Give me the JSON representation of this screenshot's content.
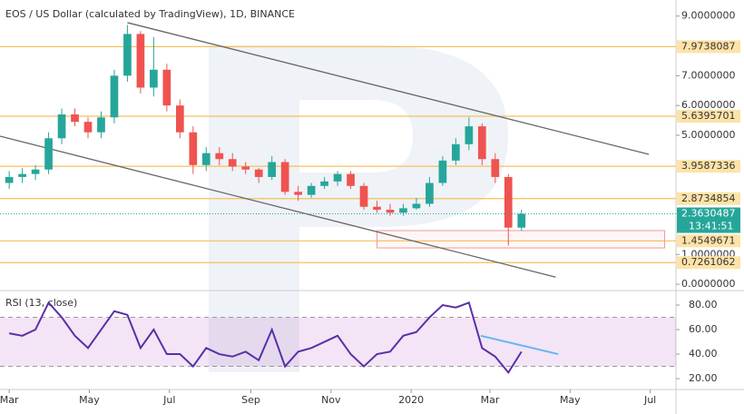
{
  "chart_data": [
    {
      "type": "candlestick",
      "title": "EOS / US Dollar (calculated by TradingView), 1D, BINANCE",
      "x": [
        0,
        10,
        20,
        30,
        40,
        50,
        60,
        70,
        80,
        90,
        100,
        110,
        120,
        130,
        140,
        150,
        160,
        170,
        180,
        190,
        200,
        210,
        220,
        230,
        240,
        250,
        260,
        270,
        280,
        290,
        300,
        310,
        320,
        330,
        340,
        350,
        360,
        370,
        380,
        390
      ],
      "open": [
        3.4,
        3.6,
        3.7,
        3.85,
        4.9,
        5.7,
        5.45,
        5.1,
        5.6,
        7.0,
        8.4,
        6.6,
        7.2,
        6.0,
        5.1,
        4.0,
        4.4,
        4.2,
        3.95,
        3.85,
        3.6,
        4.1,
        3.1,
        3.0,
        3.3,
        3.45,
        3.7,
        3.3,
        2.6,
        2.5,
        2.4,
        2.55,
        2.7,
        3.4,
        4.15,
        4.7,
        5.3,
        4.2,
        3.6,
        1.9
      ],
      "high": [
        3.8,
        3.9,
        4.0,
        5.1,
        5.9,
        5.9,
        5.6,
        5.8,
        7.2,
        8.7,
        8.5,
        8.3,
        7.4,
        6.2,
        5.3,
        4.6,
        4.6,
        4.4,
        4.1,
        3.9,
        4.3,
        4.2,
        3.3,
        3.4,
        3.6,
        3.8,
        3.8,
        3.4,
        2.8,
        2.7,
        2.7,
        2.9,
        3.6,
        4.3,
        4.9,
        5.6,
        5.4,
        4.4,
        3.7,
        2.5
      ],
      "low": [
        3.2,
        3.4,
        3.5,
        3.7,
        4.7,
        5.3,
        4.9,
        4.9,
        5.4,
        6.8,
        6.4,
        6.3,
        5.8,
        4.9,
        3.7,
        3.8,
        4.0,
        3.8,
        3.7,
        3.4,
        3.5,
        3.0,
        2.8,
        2.9,
        3.2,
        3.3,
        3.2,
        2.5,
        2.4,
        2.3,
        2.3,
        2.5,
        2.6,
        3.3,
        4.0,
        4.5,
        4.0,
        3.4,
        1.3,
        1.8
      ],
      "close": [
        3.6,
        3.7,
        3.85,
        4.9,
        5.7,
        5.45,
        5.1,
        5.6,
        7.0,
        8.4,
        6.6,
        7.2,
        6.0,
        5.1,
        4.0,
        4.4,
        4.2,
        3.95,
        3.85,
        3.6,
        4.1,
        3.1,
        3.0,
        3.3,
        3.45,
        3.7,
        3.3,
        2.6,
        2.5,
        2.4,
        2.55,
        2.7,
        3.4,
        4.15,
        4.7,
        5.3,
        4.2,
        3.6,
        1.9,
        2.3630487
      ],
      "up_color": "#26a69a",
      "down_color": "#ef5350",
      "xlim": [
        -7,
        507.6
      ],
      "ylim": [
        -0.15,
        9.54
      ],
      "yticks": [
        {
          "value": 0,
          "label": "0.0000000"
        },
        {
          "value": 1,
          "label": "1.0000000"
        },
        {
          "value": 5,
          "label": "5.0000000"
        },
        {
          "value": 6,
          "label": "6.0000000"
        },
        {
          "value": 7,
          "label": "7.0000000"
        },
        {
          "value": 9,
          "label": "9.0000000"
        }
      ],
      "levels": [
        7.9738087,
        5.6395701,
        3.9587336,
        2.8734854,
        1.4549671,
        0.7261062
      ],
      "level_color": "#f5c15a",
      "last_price": 2.3630487,
      "countdown": "13:41:51",
      "trendlines": [
        {
          "x": [
            90,
            487
          ],
          "y": [
            8.78,
            4.36
          ]
        },
        {
          "x": [
            -7,
            416
          ],
          "y": [
            4.97,
            0.24
          ]
        }
      ],
      "box": {
        "x": [
          280,
          499
        ],
        "y": [
          1.22,
          1.8
        ]
      }
    },
    {
      "type": "line",
      "title": "RSI (13, close)",
      "x": [
        0,
        10,
        20,
        30,
        40,
        50,
        60,
        70,
        80,
        90,
        100,
        110,
        120,
        130,
        140,
        150,
        160,
        170,
        180,
        190,
        200,
        210,
        220,
        230,
        240,
        250,
        260,
        270,
        280,
        290,
        300,
        310,
        320,
        330,
        340,
        350,
        360,
        370,
        380,
        390
      ],
      "values": [
        57,
        55,
        60,
        82,
        70,
        55,
        45,
        60,
        75,
        72,
        45,
        60,
        40,
        40,
        30,
        45,
        40,
        38,
        42,
        35,
        60,
        30,
        42,
        45,
        50,
        55,
        40,
        30,
        40,
        42,
        55,
        58,
        70,
        80,
        78,
        82,
        45,
        38,
        25,
        42
      ],
      "color": "#5b2fa8",
      "band": [
        30,
        70
      ],
      "xlim": [
        -7,
        507.6
      ],
      "ylim": [
        11.9,
        90.4
      ],
      "yticks": [
        {
          "value": 20,
          "label": "20.00"
        },
        {
          "value": 40,
          "label": "40.00"
        },
        {
          "value": 60,
          "label": "60.00"
        },
        {
          "value": 80,
          "label": "80.00"
        }
      ],
      "xticks": [
        {
          "value": 0,
          "label": "Mar"
        },
        {
          "value": 61,
          "label": "May"
        },
        {
          "value": 122,
          "label": "Jul"
        },
        {
          "value": 184,
          "label": "Sep"
        },
        {
          "value": 245,
          "label": "Nov"
        },
        {
          "value": 306,
          "label": "2020"
        },
        {
          "value": 366,
          "label": "Mar"
        },
        {
          "value": 427,
          "label": "May"
        },
        {
          "value": 488,
          "label": "Jul"
        }
      ],
      "trendlines": [
        {
          "x": [
            359,
            418
          ],
          "y": [
            55,
            40
          ]
        }
      ]
    }
  ]
}
